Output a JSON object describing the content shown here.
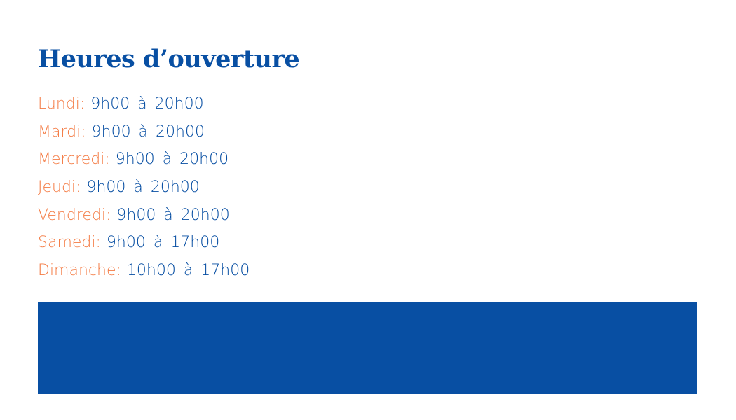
{
  "title": "Heures d’ouverture",
  "hours": [
    {
      "day": "Lundi:",
      "time": "9h00 à 20h00"
    },
    {
      "day": "Mardi:",
      "time": "9h00 à 20h00"
    },
    {
      "day": "Mercredi:",
      "time": "9h00 à 20h00"
    },
    {
      "day": "Jeudi:",
      "time": "9h00 à 20h00"
    },
    {
      "day": "Vendredi:",
      "time": "9h00 à 20h00"
    },
    {
      "day": "Samedi:",
      "time": "9h00 à 17h00"
    },
    {
      "day": "Dimanche:",
      "time": "10h00 à 17h00"
    }
  ],
  "colors": {
    "primary": "#084fa3",
    "accent": "#f47c45"
  }
}
